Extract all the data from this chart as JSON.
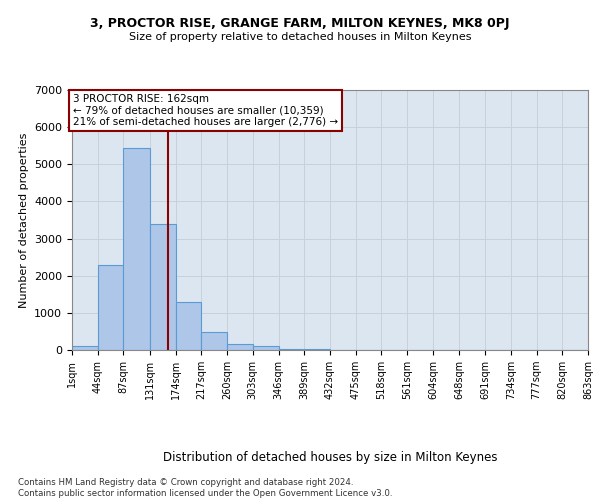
{
  "title1": "3, PROCTOR RISE, GRANGE FARM, MILTON KEYNES, MK8 0PJ",
  "title2": "Size of property relative to detached houses in Milton Keynes",
  "xlabel": "Distribution of detached houses by size in Milton Keynes",
  "ylabel": "Number of detached properties",
  "bin_edges": [
    1,
    44,
    87,
    131,
    174,
    217,
    260,
    303,
    346,
    389,
    432,
    475,
    518,
    561,
    604,
    648,
    691,
    734,
    777,
    820,
    863
  ],
  "bar_heights": [
    100,
    2300,
    5450,
    3400,
    1300,
    475,
    175,
    100,
    40,
    15,
    8,
    4,
    2,
    1,
    1,
    1,
    1,
    0,
    0,
    0
  ],
  "bar_color": "#aec6e8",
  "bar_edge_color": "#5b9bd5",
  "vline_x": 162,
  "vline_color": "#8b0000",
  "annotation_text": "3 PROCTOR RISE: 162sqm\n← 79% of detached houses are smaller (10,359)\n21% of semi-detached houses are larger (2,776) →",
  "annotation_box_color": "#ffffff",
  "annotation_box_edge": "#8b0000",
  "ylim": [
    0,
    7000
  ],
  "yticks": [
    0,
    1000,
    2000,
    3000,
    4000,
    5000,
    6000,
    7000
  ],
  "grid_color": "#c8d0d8",
  "background_color": "#dce6f0",
  "footer_text": "Contains HM Land Registry data © Crown copyright and database right 2024.\nContains public sector information licensed under the Open Government Licence v3.0.",
  "tick_labels": [
    "1sqm",
    "44sqm",
    "87sqm",
    "131sqm",
    "174sqm",
    "217sqm",
    "260sqm",
    "303sqm",
    "346sqm",
    "389sqm",
    "432sqm",
    "475sqm",
    "518sqm",
    "561sqm",
    "604sqm",
    "648sqm",
    "691sqm",
    "734sqm",
    "777sqm",
    "820sqm",
    "863sqm"
  ]
}
